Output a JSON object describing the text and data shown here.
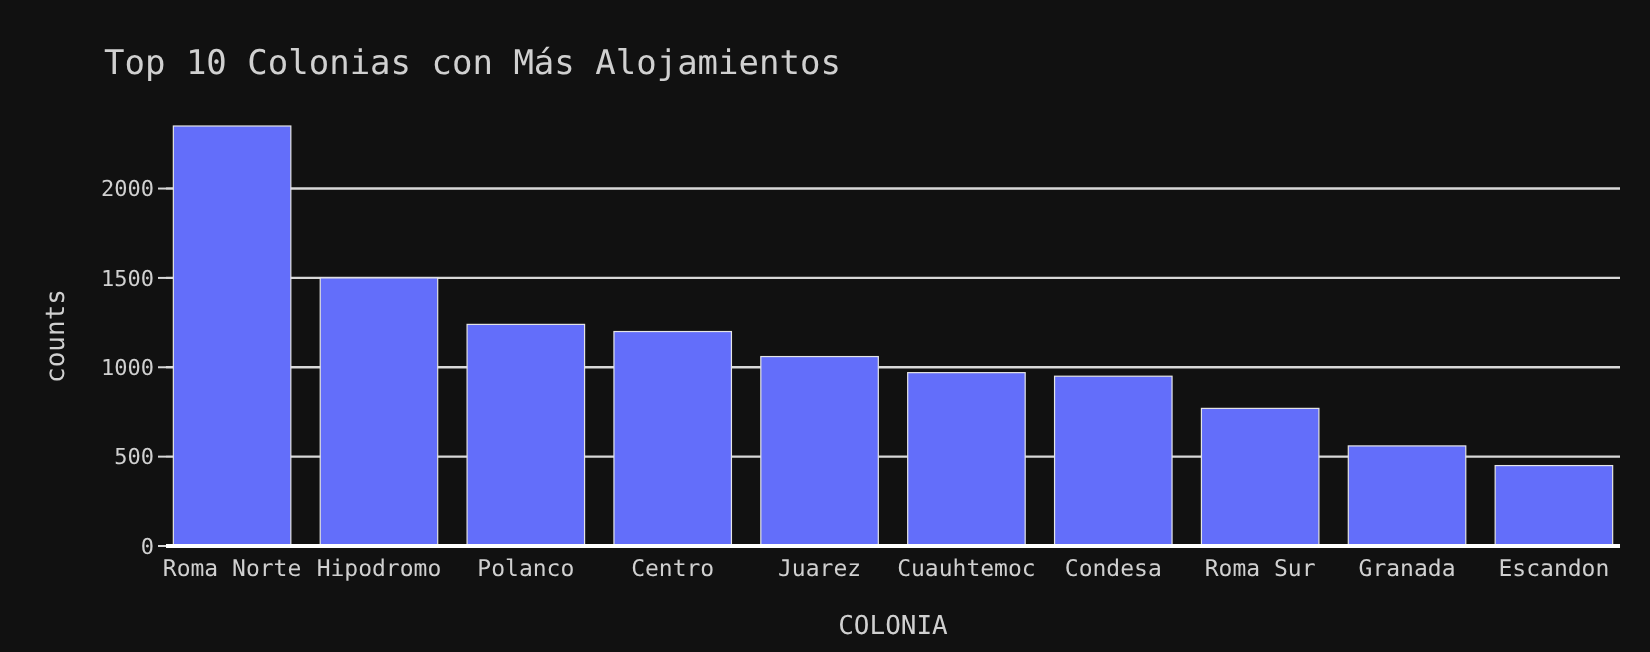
{
  "chart_data": {
    "type": "bar",
    "title": "Top 10 Colonias con Más Alojamientos",
    "xlabel": "COLONIA",
    "ylabel": "counts",
    "categories": [
      "Roma Norte",
      "Hipodromo",
      "Polanco",
      "Centro",
      "Juarez",
      "Cuauhtemoc",
      "Condesa",
      "Roma Sur",
      "Granada",
      "Escandon"
    ],
    "values": [
      2350,
      1500,
      1240,
      1200,
      1060,
      970,
      950,
      770,
      560,
      450
    ],
    "color": "#636efa",
    "ylim": [
      0,
      2350
    ],
    "yticks": [
      0,
      500,
      1000,
      1500,
      2000
    ],
    "grid": "y"
  }
}
